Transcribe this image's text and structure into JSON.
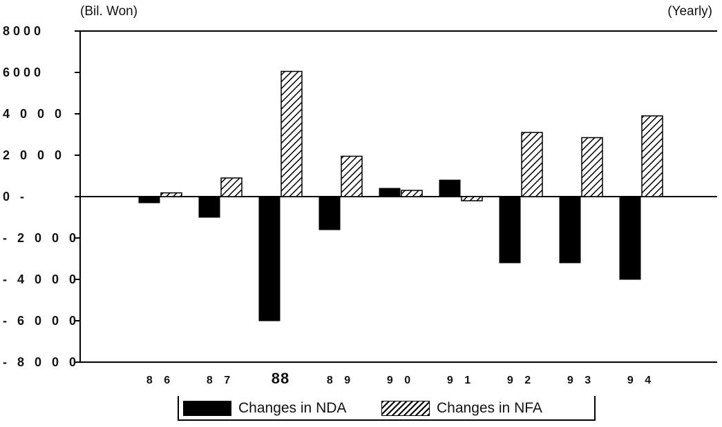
{
  "chart_data": {
    "type": "bar",
    "unit_left": "(Bil. Won)",
    "unit_right": "(Yearly)",
    "categories": [
      "8 6",
      "8 7",
      "88",
      "8 9",
      "9 0",
      "9 1",
      "9 2",
      "9 3",
      "9 4"
    ],
    "y_tick_labels": [
      "8000",
      "6000",
      "4 0 0 0",
      "2 0 0 0",
      "0 -",
      "- 2 0 0 0",
      "- 4 0 0 0",
      "- 6 0 0 0",
      "- 8 0 0 0"
    ],
    "ylim": [
      -8000,
      8000
    ],
    "grid": false,
    "legend_position": "bottom",
    "series": [
      {
        "name": "Changes in NDA",
        "values": [
          -300,
          -1000,
          -6000,
          -1600,
          400,
          800,
          -3200,
          -3200,
          -4000
        ],
        "color": "#000000",
        "fill": "solid"
      },
      {
        "name": "Changes in NFA",
        "values": [
          180,
          900,
          6050,
          1950,
          300,
          -200,
          3100,
          2850,
          3900
        ],
        "color": "#000000",
        "fill": "hatch"
      }
    ]
  }
}
